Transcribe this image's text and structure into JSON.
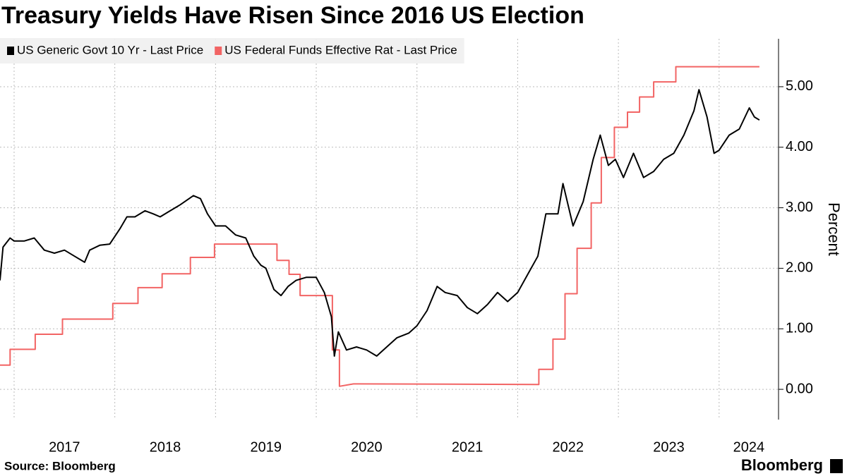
{
  "chart_data": {
    "type": "line",
    "title": "Treasury Yields Have Risen Since 2016 US Election",
    "y_label": "Percent",
    "source": "Source: Bloomberg",
    "brand": "Bloomberg",
    "legend": "top-left",
    "grid": true,
    "xlim": [
      2016.86,
      2024.59
    ],
    "xticks": [
      2017,
      2018,
      2019,
      2020,
      2021,
      2022,
      2023,
      2024
    ],
    "ylim": [
      -0.5,
      5.85
    ],
    "yticks": [
      {
        "value": 0,
        "label": "0.00"
      },
      {
        "value": 1,
        "label": "1.00"
      },
      {
        "value": 2,
        "label": "2.00"
      },
      {
        "value": 3,
        "label": "3.00"
      },
      {
        "value": 4,
        "label": "4.00"
      },
      {
        "value": 5,
        "label": "5.00"
      }
    ],
    "series": [
      {
        "name": "US Generic Govt 10 Yr - Last Price",
        "color": "#000000",
        "x": [
          2016.86,
          2016.89,
          2016.96,
          2017.0,
          2017.1,
          2017.2,
          2017.3,
          2017.4,
          2017.5,
          2017.6,
          2017.7,
          2017.75,
          2017.85,
          2017.95,
          2018.05,
          2018.12,
          2018.2,
          2018.3,
          2018.38,
          2018.45,
          2018.55,
          2018.65,
          2018.78,
          2018.85,
          2018.92,
          2019.0,
          2019.1,
          2019.2,
          2019.3,
          2019.38,
          2019.45,
          2019.5,
          2019.58,
          2019.65,
          2019.72,
          2019.8,
          2019.9,
          2020.0,
          2020.08,
          2020.15,
          2020.18,
          2020.22,
          2020.3,
          2020.4,
          2020.5,
          2020.6,
          2020.7,
          2020.8,
          2020.92,
          2021.0,
          2021.1,
          2021.2,
          2021.28,
          2021.4,
          2021.5,
          2021.6,
          2021.7,
          2021.8,
          2021.9,
          2022.0,
          2022.1,
          2022.2,
          2022.28,
          2022.4,
          2022.45,
          2022.55,
          2022.65,
          2022.75,
          2022.82,
          2022.9,
          2022.97,
          2023.05,
          2023.15,
          2023.25,
          2023.35,
          2023.45,
          2023.55,
          2023.65,
          2023.75,
          2023.8,
          2023.88,
          2023.95,
          2024.0,
          2024.1,
          2024.2,
          2024.3,
          2024.35,
          2024.4
        ],
        "values": [
          1.8,
          2.35,
          2.5,
          2.45,
          2.45,
          2.5,
          2.3,
          2.25,
          2.3,
          2.2,
          2.1,
          2.3,
          2.38,
          2.4,
          2.65,
          2.85,
          2.85,
          2.95,
          2.9,
          2.85,
          2.95,
          3.05,
          3.2,
          3.15,
          2.9,
          2.7,
          2.7,
          2.55,
          2.5,
          2.2,
          2.05,
          2.0,
          1.65,
          1.55,
          1.7,
          1.8,
          1.85,
          1.85,
          1.6,
          1.2,
          0.55,
          0.95,
          0.65,
          0.7,
          0.65,
          0.55,
          0.7,
          0.85,
          0.93,
          1.05,
          1.3,
          1.7,
          1.6,
          1.55,
          1.35,
          1.25,
          1.4,
          1.6,
          1.45,
          1.6,
          1.9,
          2.2,
          2.9,
          2.9,
          3.4,
          2.7,
          3.1,
          3.8,
          4.2,
          3.7,
          3.8,
          3.5,
          3.9,
          3.5,
          3.6,
          3.8,
          3.9,
          4.2,
          4.6,
          4.95,
          4.5,
          3.9,
          3.95,
          4.2,
          4.3,
          4.65,
          4.5,
          4.45
        ]
      },
      {
        "name": "US Federal Funds Effective Rat - Last Price",
        "color": "#f26464",
        "x": [
          2016.86,
          2016.96,
          2016.96,
          2017.21,
          2017.21,
          2017.48,
          2017.48,
          2017.98,
          2017.98,
          2018.23,
          2018.23,
          2018.47,
          2018.47,
          2018.75,
          2018.75,
          2018.99,
          2018.99,
          2019.61,
          2019.61,
          2019.73,
          2019.73,
          2019.84,
          2019.84,
          2020.16,
          2020.16,
          2020.23,
          2020.23,
          2020.37,
          2022.21,
          2022.21,
          2022.35,
          2022.35,
          2022.47,
          2022.47,
          2022.59,
          2022.59,
          2022.73,
          2022.73,
          2022.83,
          2022.83,
          2022.96,
          2022.96,
          2023.09,
          2023.09,
          2023.21,
          2023.21,
          2023.35,
          2023.35,
          2023.57,
          2023.57,
          2024.4
        ],
        "values": [
          0.4,
          0.4,
          0.66,
          0.66,
          0.91,
          0.91,
          1.16,
          1.16,
          1.42,
          1.42,
          1.68,
          1.68,
          1.91,
          1.91,
          2.18,
          2.18,
          2.4,
          2.4,
          2.13,
          2.13,
          1.9,
          1.9,
          1.55,
          1.55,
          0.65,
          0.65,
          0.05,
          0.09,
          0.08,
          0.33,
          0.33,
          0.83,
          0.83,
          1.58,
          1.58,
          2.33,
          2.33,
          3.08,
          3.08,
          3.83,
          3.83,
          4.33,
          4.33,
          4.58,
          4.58,
          4.83,
          4.83,
          5.08,
          5.08,
          5.33,
          5.33
        ]
      }
    ]
  }
}
